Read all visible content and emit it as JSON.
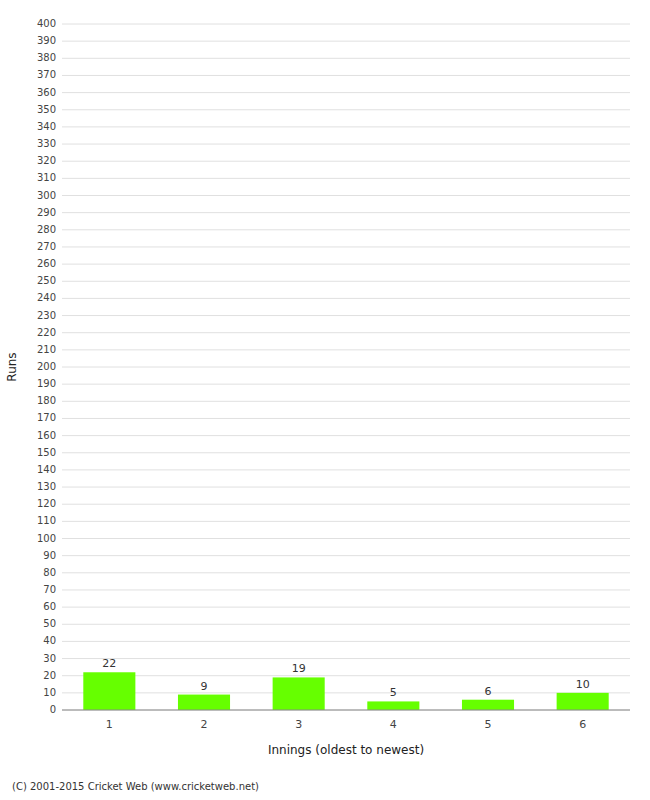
{
  "chart_data": {
    "type": "bar",
    "categories": [
      1,
      2,
      3,
      4,
      5,
      6
    ],
    "values": [
      22,
      9,
      19,
      5,
      6,
      10
    ],
    "color": "#66ff00",
    "xlabel": "Innings (oldest to newest)",
    "ylabel": "Runs",
    "ylim": [
      0,
      400
    ],
    "yticks": [
      0,
      10,
      20,
      30,
      40,
      50,
      60,
      70,
      80,
      90,
      100,
      110,
      120,
      130,
      140,
      150,
      160,
      170,
      180,
      190,
      200,
      210,
      220,
      230,
      240,
      250,
      260,
      270,
      280,
      290,
      300,
      310,
      320,
      330,
      340,
      350,
      360,
      370,
      380,
      390,
      400
    ],
    "grid": true,
    "data_labels": true,
    "annotations": [
      "(C) 2001-2015 Cricket Web (www.cricketweb.net)"
    ]
  }
}
